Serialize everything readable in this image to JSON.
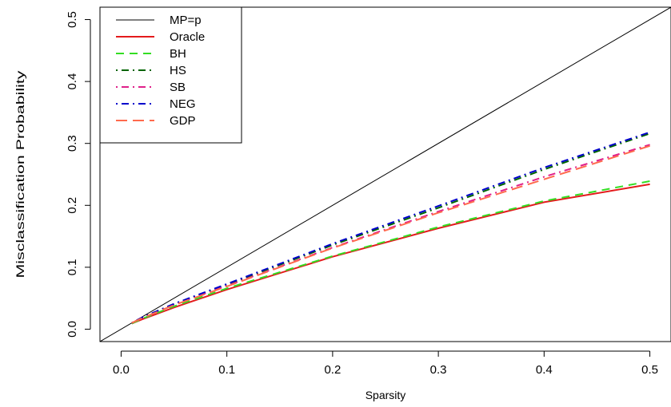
{
  "chart_data": {
    "type": "line",
    "title": "",
    "xlabel": "Sparsity",
    "ylabel": "Misclassification Probability",
    "xlim": [
      -0.02,
      0.52
    ],
    "ylim": [
      -0.02,
      0.52
    ],
    "x_ticks": [
      "0.0",
      "0.1",
      "0.2",
      "0.3",
      "0.4",
      "0.5"
    ],
    "y_ticks": [
      "0.0",
      "0.1",
      "0.2",
      "0.3",
      "0.4",
      "0.5"
    ],
    "legend_position": "top-left",
    "grid": false,
    "series": [
      {
        "name": "MP=p",
        "color": "#000000",
        "dash": "solid",
        "width": 1,
        "x": [
          -0.02,
          0.52
        ],
        "y": [
          -0.02,
          0.52
        ]
      },
      {
        "name": "Oracle",
        "color": "#e41a1c",
        "dash": "solid",
        "width": 2,
        "x": [
          0.01,
          0.02,
          0.05,
          0.1,
          0.2,
          0.3,
          0.4,
          0.5
        ],
        "y": [
          0.009,
          0.016,
          0.035,
          0.064,
          0.117,
          0.163,
          0.205,
          0.234
        ]
      },
      {
        "name": "BH",
        "color": "#33dd22",
        "dash": "10,7",
        "width": 2,
        "x": [
          0.01,
          0.02,
          0.05,
          0.1,
          0.2,
          0.3,
          0.4,
          0.5
        ],
        "y": [
          0.009,
          0.017,
          0.037,
          0.066,
          0.118,
          0.165,
          0.207,
          0.239
        ]
      },
      {
        "name": "HS",
        "color": "#006400",
        "dash": "2,5,9,5",
        "width": 2,
        "x": [
          0.01,
          0.02,
          0.05,
          0.1,
          0.2,
          0.3,
          0.4,
          0.5
        ],
        "y": [
          0.01,
          0.019,
          0.041,
          0.072,
          0.136,
          0.196,
          0.258,
          0.316
        ]
      },
      {
        "name": "SB",
        "color": "#e0208a",
        "dash": "2,5,9,5",
        "width": 2,
        "x": [
          0.01,
          0.02,
          0.05,
          0.1,
          0.2,
          0.3,
          0.4,
          0.5
        ],
        "y": [
          0.01,
          0.019,
          0.04,
          0.07,
          0.132,
          0.19,
          0.246,
          0.298
        ]
      },
      {
        "name": "NEG",
        "color": "#0000cc",
        "dash": "2,5,9,5",
        "width": 2,
        "x": [
          0.01,
          0.02,
          0.05,
          0.1,
          0.2,
          0.3,
          0.4,
          0.5
        ],
        "y": [
          0.01,
          0.019,
          0.041,
          0.073,
          0.138,
          0.199,
          0.261,
          0.318
        ]
      },
      {
        "name": "GDP",
        "color": "#ff6a4d",
        "dash": "14,7",
        "width": 2,
        "x": [
          0.01,
          0.02,
          0.05,
          0.1,
          0.2,
          0.3,
          0.4,
          0.5
        ],
        "y": [
          0.01,
          0.018,
          0.039,
          0.069,
          0.131,
          0.188,
          0.242,
          0.296
        ]
      }
    ]
  }
}
